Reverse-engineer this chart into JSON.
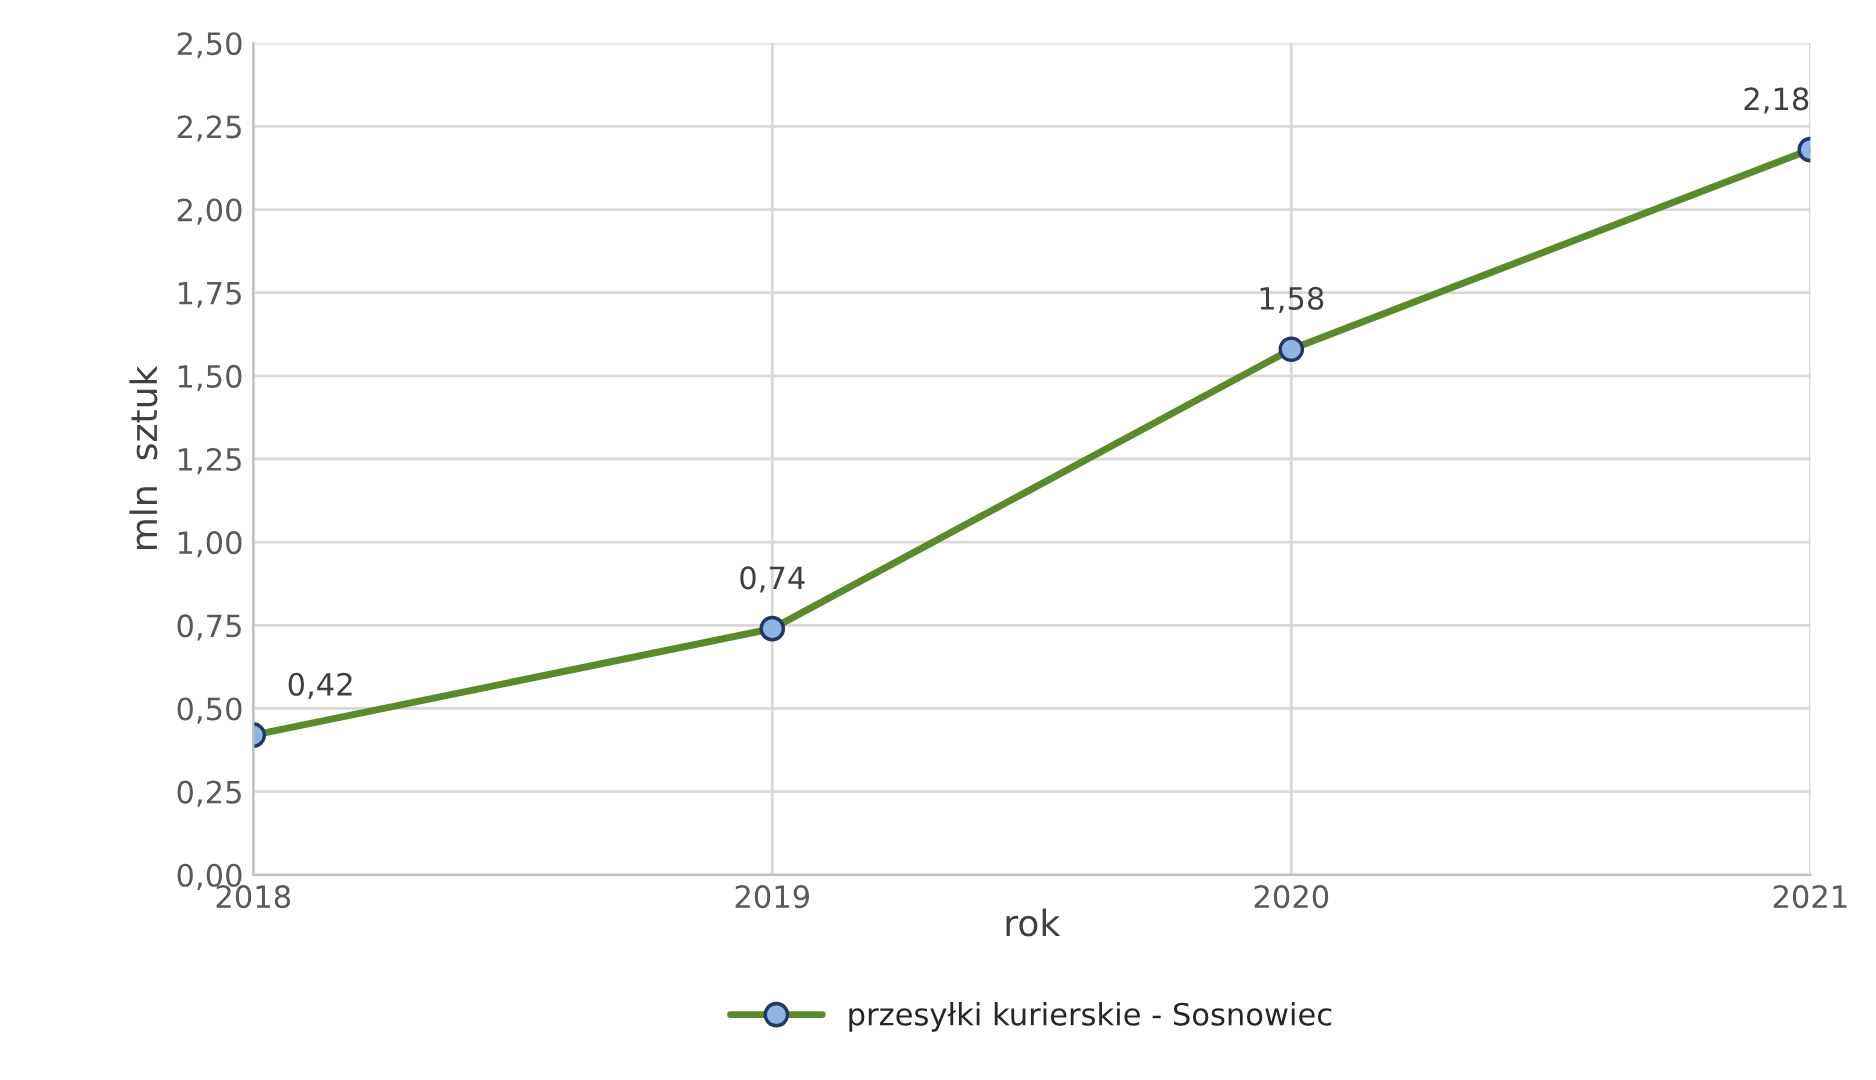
{
  "chart_data": {
    "type": "line",
    "xlabel": "rok",
    "ylabel": "mln  sztuk",
    "x": [
      2018,
      2019,
      2020,
      2021
    ],
    "series": [
      {
        "name": "przesyłki kurierskie - Sosnowiec",
        "color": "#5a8a2a",
        "values": [
          0.42,
          0.74,
          1.58,
          2.18
        ],
        "value_labels": [
          "0,42",
          "0,74",
          "1,58",
          "2,18"
        ]
      }
    ],
    "xlim": [
      2018,
      2021
    ],
    "xticks": [
      2018,
      2019,
      2020,
      2021
    ],
    "ylim": [
      0,
      2.5
    ],
    "yticks": [
      {
        "value": 0,
        "label": "0,00"
      },
      {
        "value": 0.25,
        "label": "0,25"
      },
      {
        "value": 0.5,
        "label": "0,50"
      },
      {
        "value": 0.75,
        "label": "0,75"
      },
      {
        "value": 1.0,
        "label": "1,00"
      },
      {
        "value": 1.25,
        "label": "1,25"
      },
      {
        "value": 1.5,
        "label": "1,50"
      },
      {
        "value": 1.75,
        "label": "1,75"
      },
      {
        "value": 2.0,
        "label": "2,00"
      },
      {
        "value": 2.25,
        "label": "2,25"
      },
      {
        "value": 2.5,
        "label": "2,50"
      }
    ],
    "grid": true,
    "legend": "bottom",
    "marker": "circle",
    "line_style": "solid"
  }
}
